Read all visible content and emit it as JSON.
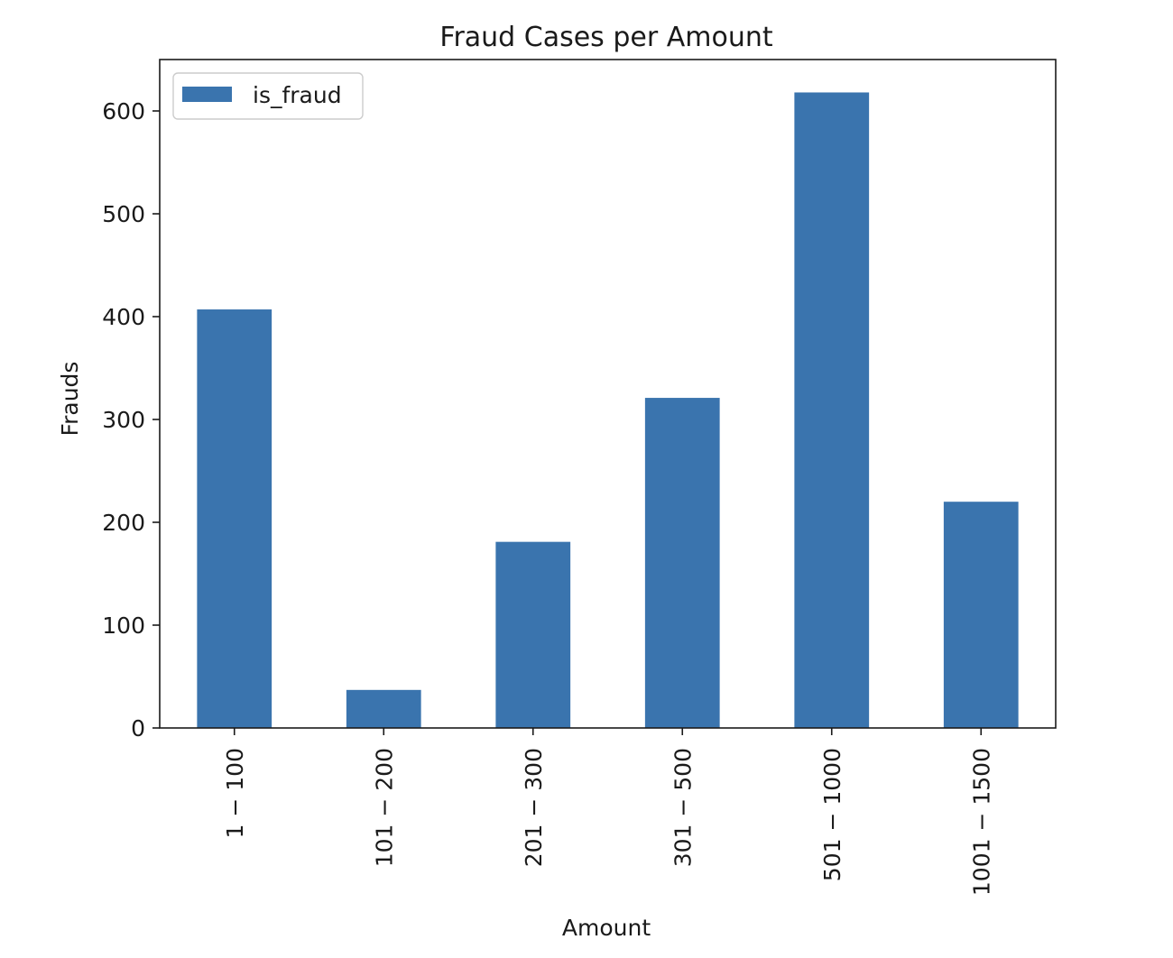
{
  "chart_data": {
    "type": "bar",
    "title": "Fraud Cases per Amount",
    "xlabel": "Amount",
    "ylabel": "Frauds",
    "categories": [
      "1 − 100",
      "101 − 200",
      "201 − 300",
      "301 − 500",
      "501 − 1000",
      "1001 − 1500"
    ],
    "series": [
      {
        "name": "is_fraud",
        "values": [
          407,
          37,
          181,
          321,
          618,
          220
        ],
        "color": "#3a74ae"
      }
    ],
    "yticks": [
      0,
      100,
      200,
      300,
      400,
      500,
      600
    ],
    "ylim": [
      0,
      650
    ],
    "grid": false,
    "legend_position": "top-left"
  }
}
